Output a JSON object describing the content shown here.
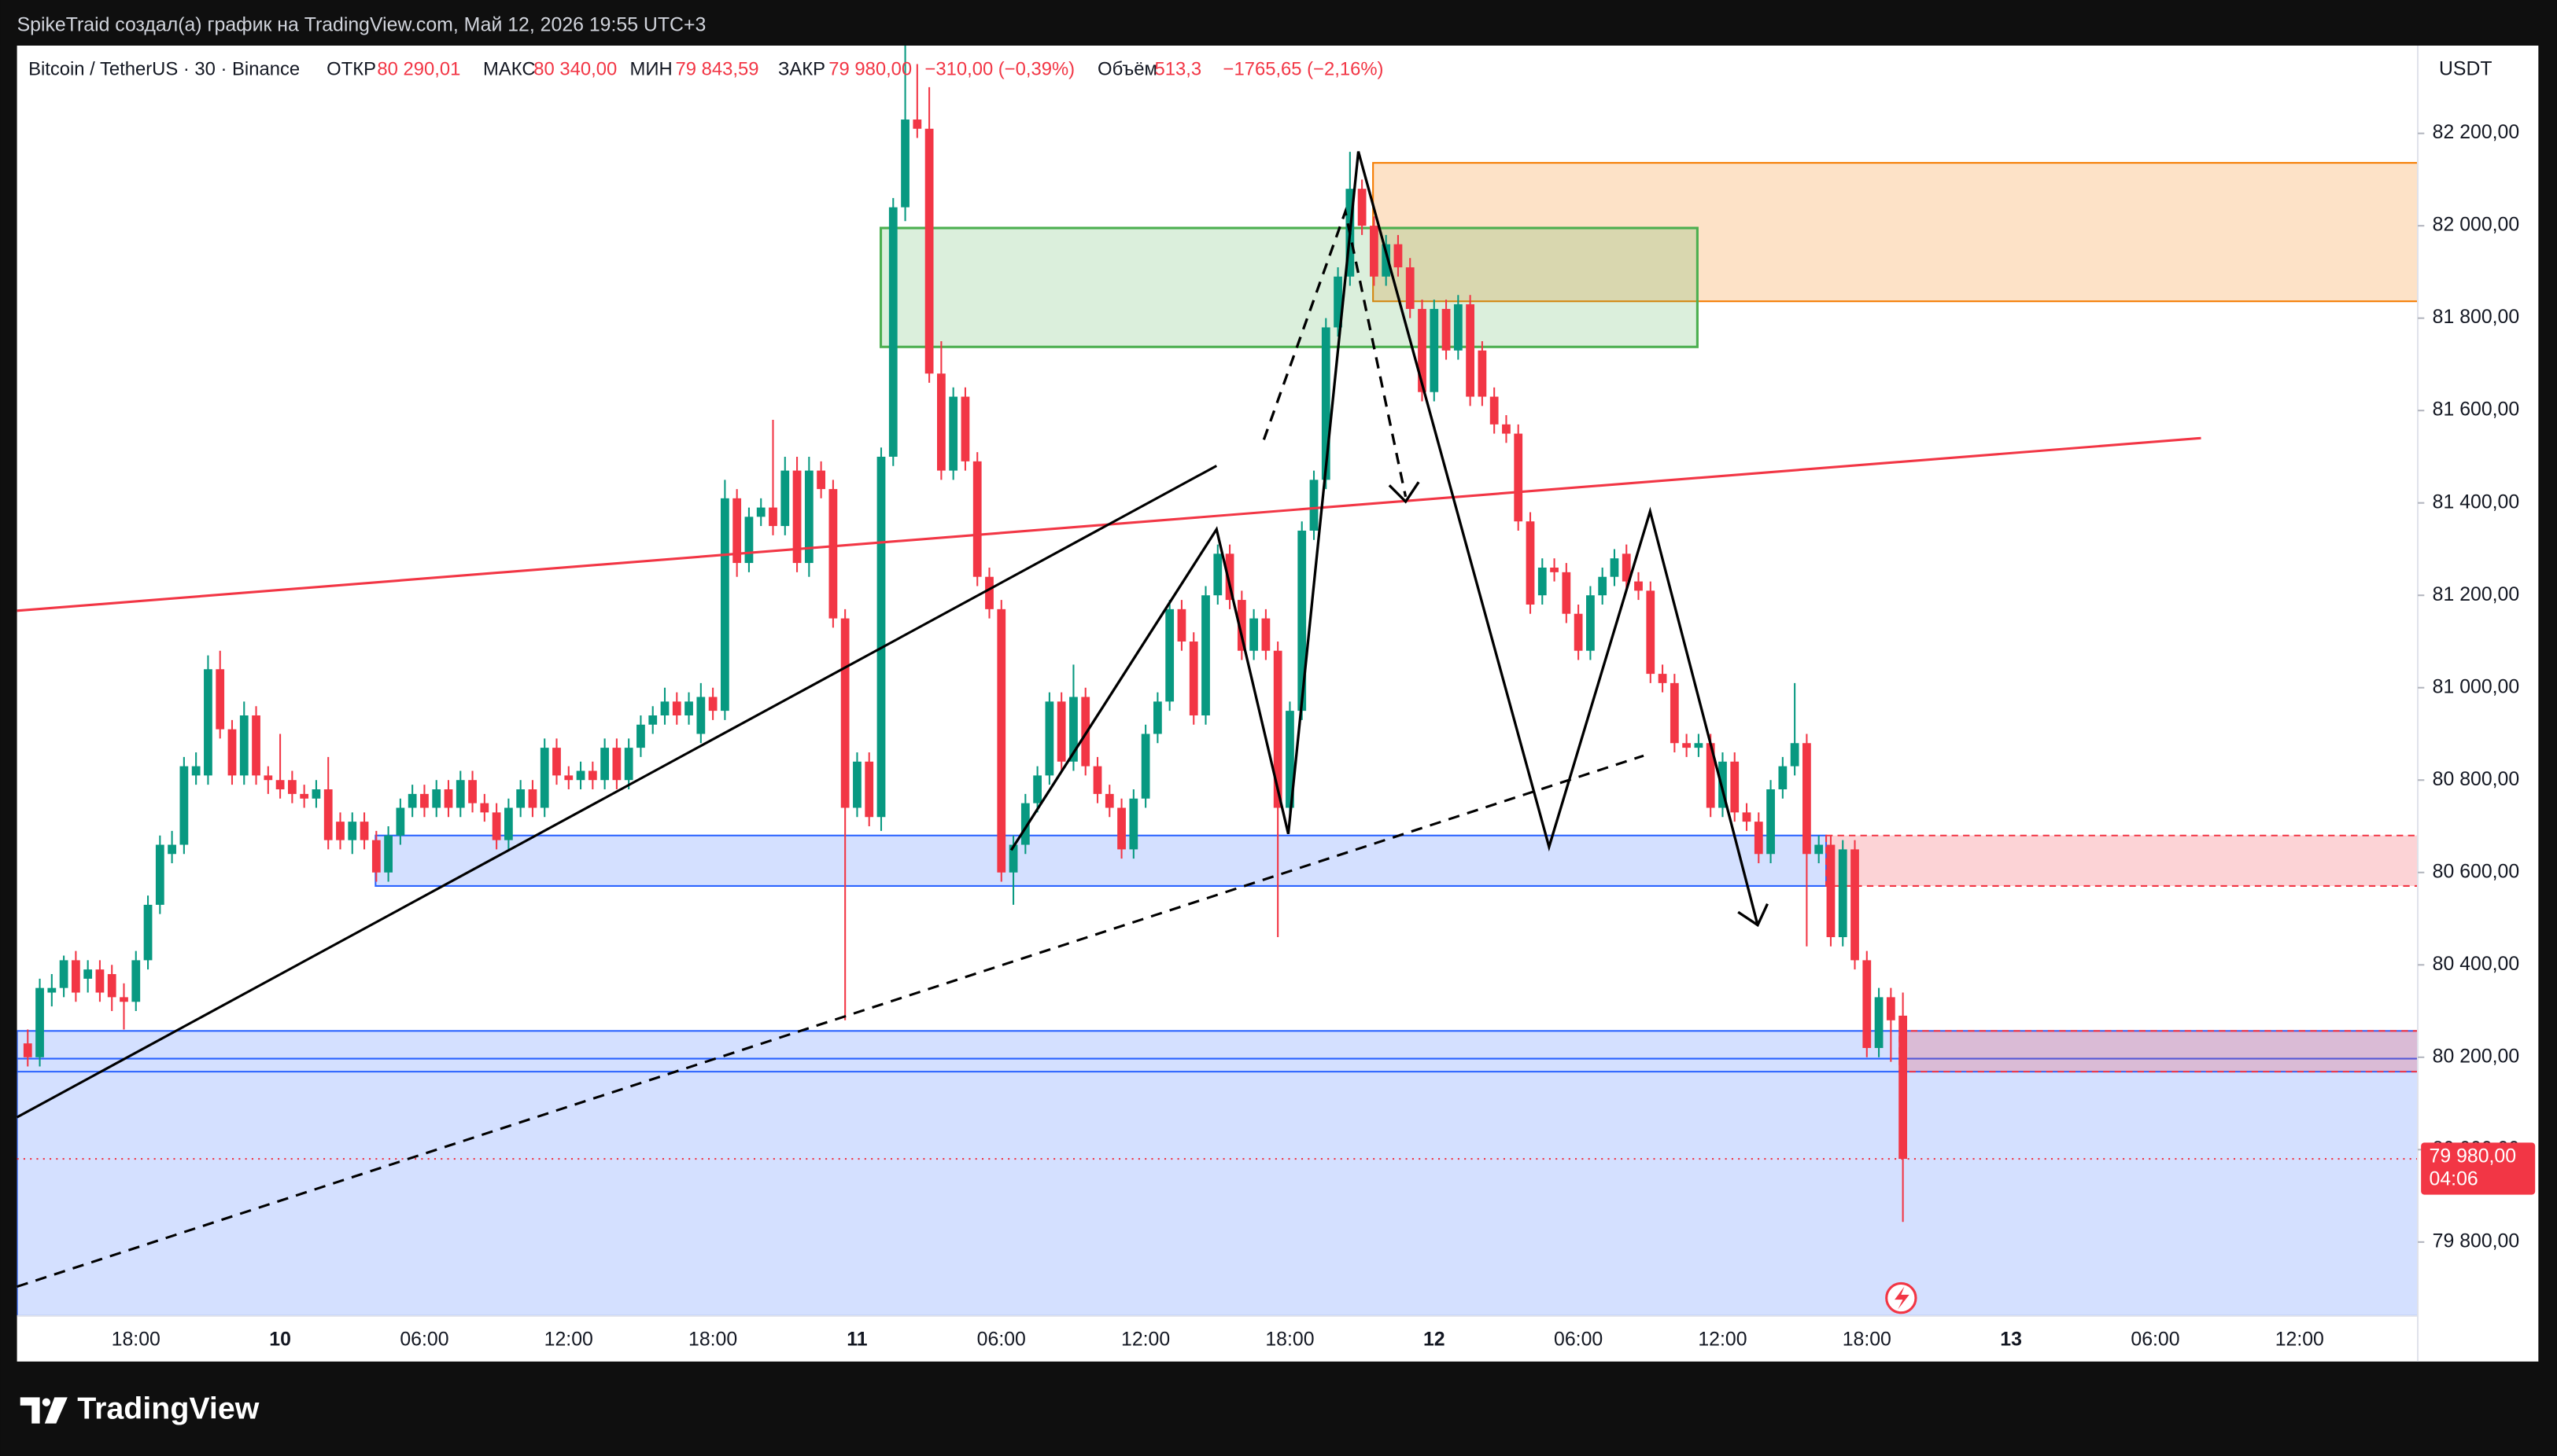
{
  "header": {
    "author_line": "SpikeTraid создал(а) график на TradingView.com, Май 12, 2026 19:55 UTC+3"
  },
  "legend": {
    "symbol": "Bitcoin / TetherUS · 30 · Binance",
    "open_label": "ОТКР",
    "open": "80 290,01",
    "high_label": "МАКС",
    "high": "80 340,00",
    "low_label": "МИН",
    "low": "79 843,59",
    "close_label": "ЗАКР",
    "close": "79 980,00",
    "change": "−310,00 (−0,39%)",
    "volume_label": "Объём",
    "volume": "513,3",
    "volume_change": "−1765,65 (−2,16%)"
  },
  "footer": {
    "brand": "TradingView"
  },
  "chart_data": {
    "type": "candlestick",
    "currency": "USDT",
    "up_color": "#089981",
    "down_color": "#f23645",
    "grid": false,
    "ylim": [
      79640,
      82390
    ],
    "yticks": [
      {
        "value": 79800,
        "label": "79 800,00"
      },
      {
        "value": 80000,
        "label": "80 000,00"
      },
      {
        "value": 80200,
        "label": "80 200,00"
      },
      {
        "value": 80400,
        "label": "80 400,00"
      },
      {
        "value": 80600,
        "label": "80 600,00"
      },
      {
        "value": 80800,
        "label": "80 800,00"
      },
      {
        "value": 81000,
        "label": "81 000,00"
      },
      {
        "value": 81200,
        "label": "81 200,00"
      },
      {
        "value": 81400,
        "label": "81 400,00"
      },
      {
        "value": 81600,
        "label": "81 600,00"
      },
      {
        "value": 81800,
        "label": "81 800,00"
      },
      {
        "value": 82000,
        "label": "82 000,00"
      },
      {
        "value": 82200,
        "label": "82 200,00"
      }
    ],
    "last_price": {
      "value": 79980,
      "label": "79 980,00",
      "countdown": "04:06",
      "color": "#f23645"
    },
    "categories": [
      null,
      null,
      null,
      null,
      null,
      null,
      null,
      null,
      null,
      "18:00",
      null,
      null,
      null,
      null,
      null,
      null,
      null,
      null,
      null,
      null,
      null,
      "10",
      null,
      null,
      null,
      null,
      null,
      null,
      null,
      null,
      null,
      null,
      null,
      "06:00",
      null,
      null,
      null,
      null,
      null,
      null,
      null,
      null,
      null,
      null,
      null,
      "12:00",
      null,
      null,
      null,
      null,
      null,
      null,
      null,
      null,
      null,
      null,
      null,
      "18:00",
      null,
      null,
      null,
      null,
      null,
      null,
      null,
      null,
      null,
      null,
      null,
      "11",
      null,
      null,
      null,
      null,
      null,
      null,
      null,
      null,
      null,
      null,
      null,
      "06:00",
      null,
      null,
      null,
      null,
      null,
      null,
      null,
      null,
      null,
      null,
      null,
      "12:00",
      null,
      null,
      null,
      null,
      null,
      null,
      null,
      null,
      null,
      null,
      null,
      "18:00",
      null,
      null,
      null,
      null,
      null,
      null,
      null,
      null,
      null,
      null,
      null,
      "12",
      null,
      null,
      null,
      null,
      null,
      null,
      null,
      null,
      null,
      null,
      null,
      "06:00",
      null,
      null,
      null,
      null,
      null,
      null,
      null,
      null,
      null,
      null,
      null,
      "12:00",
      null,
      null,
      null,
      null,
      null,
      null,
      null,
      null,
      null,
      null,
      null,
      "18:00",
      null,
      null,
      null,
      null,
      null,
      null,
      null,
      null,
      null,
      null,
      null,
      "13",
      null,
      null,
      null,
      null,
      null,
      null,
      null,
      null,
      null,
      null,
      null,
      "06:00",
      null,
      null,
      null,
      null,
      null,
      null,
      null,
      null,
      null,
      null,
      null,
      "12:00"
    ],
    "open": [
      80230,
      80200,
      80340,
      80350,
      80410,
      80370,
      80390,
      80380,
      80330,
      80320,
      80410,
      80530,
      80640,
      80660,
      80810,
      80810,
      81040,
      80910,
      80810,
      80940,
      80810,
      80800,
      80800,
      80770,
      80760,
      80780,
      80710,
      80670,
      80710,
      80670,
      80600,
      80680,
      80740,
      80770,
      80740,
      80780,
      80740,
      80800,
      80750,
      80730,
      80670,
      80740,
      80780,
      80740,
      80870,
      80810,
      80800,
      80820,
      80800,
      80870,
      80800,
      80870,
      80920,
      80940,
      80970,
      80940,
      80900,
      80980,
      80950,
      81410,
      81270,
      81370,
      81390,
      81350,
      81470,
      81270,
      81470,
      81430,
      81150,
      80740,
      80840,
      80720,
      81500,
      82040,
      82230,
      82210,
      81680,
      81470,
      81630,
      81490,
      81240,
      81170,
      80600,
      80660,
      80750,
      80810,
      80970,
      80840,
      80980,
      80830,
      80770,
      80740,
      80650,
      80760,
      80900,
      80970,
      81170,
      81100,
      80940,
      81200,
      81290,
      81190,
      81080,
      81150,
      81080,
      80740,
      80950,
      81340,
      81450,
      81780,
      81890,
      82080,
      82000,
      81890,
      81960,
      81910,
      81820,
      81640,
      81820,
      81730,
      81830,
      81730,
      81630,
      81570,
      81550,
      81360,
      81200,
      81260,
      81250,
      81160,
      81080,
      81200,
      81240,
      81290,
      81230,
      81210,
      81030,
      81010,
      80880,
      80870,
      80880,
      80740,
      80840,
      80730,
      80710,
      80640,
      80780,
      80830,
      80880,
      80640,
      80660,
      80460,
      80650,
      80410,
      80220,
      80330,
      80290.01,
      null,
      null,
      null,
      null,
      null,
      null,
      null,
      null,
      null,
      null,
      null,
      null,
      null,
      null,
      null,
      null,
      null,
      null,
      null,
      null,
      null,
      null,
      null,
      null,
      null,
      null,
      null,
      null,
      null,
      null,
      null,
      null,
      null
    ],
    "high": [
      80260,
      80370,
      80380,
      80420,
      80430,
      80410,
      80410,
      80400,
      80360,
      80430,
      80550,
      80680,
      80690,
      80850,
      80860,
      81070,
      81080,
      80930,
      80970,
      80960,
      80830,
      80900,
      80820,
      80790,
      80800,
      80850,
      80730,
      80730,
      80730,
      80690,
      80700,
      80760,
      80790,
      80790,
      80800,
      80800,
      80820,
      80820,
      80770,
      80750,
      80760,
      80800,
      80800,
      80890,
      80890,
      80830,
      80840,
      80840,
      80890,
      80890,
      80890,
      80940,
      80960,
      81000,
      80990,
      80990,
      81010,
      81000,
      81450,
      81430,
      81390,
      81410,
      81580,
      81500,
      81500,
      81500,
      81490,
      81450,
      81170,
      80860,
      80860,
      81520,
      82060,
      82420,
      82350,
      82300,
      81750,
      81650,
      81650,
      81510,
      81260,
      81190,
      80680,
      80770,
      80830,
      80990,
      80990,
      81050,
      81000,
      80850,
      80790,
      80760,
      80780,
      80920,
      80990,
      81190,
      81190,
      81120,
      81220,
      81310,
      81310,
      81210,
      81170,
      81170,
      81100,
      80970,
      81360,
      81470,
      81800,
      81910,
      82160,
      82100,
      82020,
      81980,
      81980,
      81930,
      81840,
      81840,
      81840,
      81850,
      81850,
      81750,
      81650,
      81590,
      81570,
      81380,
      81280,
      81280,
      81270,
      81180,
      81220,
      81260,
      81300,
      81310,
      81250,
      81230,
      81050,
      81030,
      80900,
      80900,
      80900,
      80860,
      80860,
      80750,
      80730,
      80800,
      80850,
      81010,
      80900,
      80680,
      80680,
      80670,
      80670,
      80430,
      80350,
      80350,
      80340,
      null,
      null,
      null,
      null,
      null,
      null,
      null,
      null,
      null,
      null,
      null,
      null,
      null,
      null,
      null,
      null,
      null,
      null,
      null,
      null,
      null,
      null,
      null,
      null,
      null,
      null,
      null,
      null,
      null,
      null,
      null,
      null,
      null
    ],
    "low": [
      80180,
      80180,
      80310,
      80330,
      80320,
      80340,
      80320,
      80300,
      80260,
      80300,
      80390,
      80510,
      80620,
      80640,
      80790,
      80790,
      80890,
      80790,
      80790,
      80790,
      80770,
      80760,
      80750,
      80740,
      80740,
      80650,
      80650,
      80640,
      80650,
      80580,
      80580,
      80660,
      80720,
      80720,
      80720,
      80720,
      80720,
      80730,
      80710,
      80650,
      80650,
      80720,
      80720,
      80720,
      80790,
      80780,
      80780,
      80780,
      80780,
      80780,
      80780,
      80850,
      80900,
      80920,
      80920,
      80920,
      80880,
      80930,
      80930,
      81240,
      81250,
      81350,
      81330,
      81330,
      81250,
      81240,
      81410,
      81130,
      80280,
      80720,
      80700,
      80690,
      81480,
      82010,
      82190,
      81660,
      81450,
      81450,
      81470,
      81220,
      81150,
      80580,
      80530,
      80640,
      80730,
      80790,
      80820,
      80820,
      80810,
      80750,
      80720,
      80630,
      80630,
      80740,
      80880,
      80950,
      81080,
      80920,
      80920,
      81180,
      81170,
      81060,
      81060,
      81060,
      80460,
      80720,
      80930,
      81320,
      81430,
      81760,
      81870,
      81980,
      81870,
      81870,
      81890,
      81800,
      81620,
      81620,
      81710,
      81710,
      81610,
      81610,
      81550,
      81530,
      81340,
      81160,
      81180,
      81230,
      81140,
      81060,
      81060,
      81180,
      81220,
      81210,
      81190,
      81010,
      80990,
      80860,
      80850,
      80850,
      80720,
      80720,
      80710,
      80690,
      80620,
      80620,
      80760,
      80810,
      80440,
      80620,
      80440,
      80440,
      80390,
      80200,
      80200,
      80190,
      79843.59,
      null,
      null,
      null,
      null,
      null,
      null,
      null,
      null,
      null,
      null,
      null,
      null,
      null,
      null,
      null,
      null,
      null,
      null,
      null,
      null,
      null,
      null,
      null,
      null,
      null,
      null,
      null,
      null,
      null,
      null,
      null,
      null,
      null
    ],
    "close": [
      80200,
      80350,
      80350,
      80410,
      80340,
      80390,
      80340,
      80330,
      80320,
      80410,
      80530,
      80660,
      80660,
      80830,
      80830,
      81040,
      80910,
      80810,
      80940,
      80810,
      80800,
      80780,
      80770,
      80760,
      80780,
      80670,
      80670,
      80710,
      80670,
      80600,
      80680,
      80740,
      80770,
      80740,
      80780,
      80740,
      80800,
      80750,
      80730,
      80670,
      80740,
      80780,
      80740,
      80870,
      80810,
      80800,
      80820,
      80800,
      80870,
      80800,
      80870,
      80920,
      80940,
      80970,
      80940,
      80970,
      80980,
      80950,
      81410,
      81270,
      81370,
      81390,
      81350,
      81470,
      81270,
      81470,
      81430,
      81150,
      80740,
      80840,
      80720,
      81500,
      82040,
      82230,
      82210,
      81680,
      81470,
      81630,
      81490,
      81240,
      81170,
      80600,
      80660,
      80750,
      80810,
      80970,
      80840,
      80980,
      80830,
      80770,
      80740,
      80650,
      80760,
      80900,
      80970,
      81170,
      81100,
      80940,
      81200,
      81290,
      81190,
      81080,
      81150,
      81080,
      80740,
      80950,
      81340,
      81450,
      81780,
      81890,
      82080,
      82000,
      81890,
      81960,
      81910,
      81820,
      81640,
      81820,
      81730,
      81830,
      81630,
      81630,
      81570,
      81550,
      81360,
      81180,
      81260,
      81250,
      81160,
      81080,
      81200,
      81240,
      81280,
      81230,
      81210,
      81030,
      81010,
      80880,
      80870,
      80880,
      80740,
      80840,
      80730,
      80710,
      80640,
      80780,
      80830,
      80880,
      80640,
      80660,
      80460,
      80650,
      80410,
      80220,
      80330,
      80280,
      79980,
      null,
      null,
      null,
      null,
      null,
      null,
      null,
      null,
      null,
      null,
      null,
      null,
      null,
      null,
      null,
      null,
      null,
      null,
      null,
      null,
      null,
      null,
      null,
      null,
      null,
      null,
      null,
      null,
      null,
      null,
      null,
      null,
      null
    ]
  }
}
